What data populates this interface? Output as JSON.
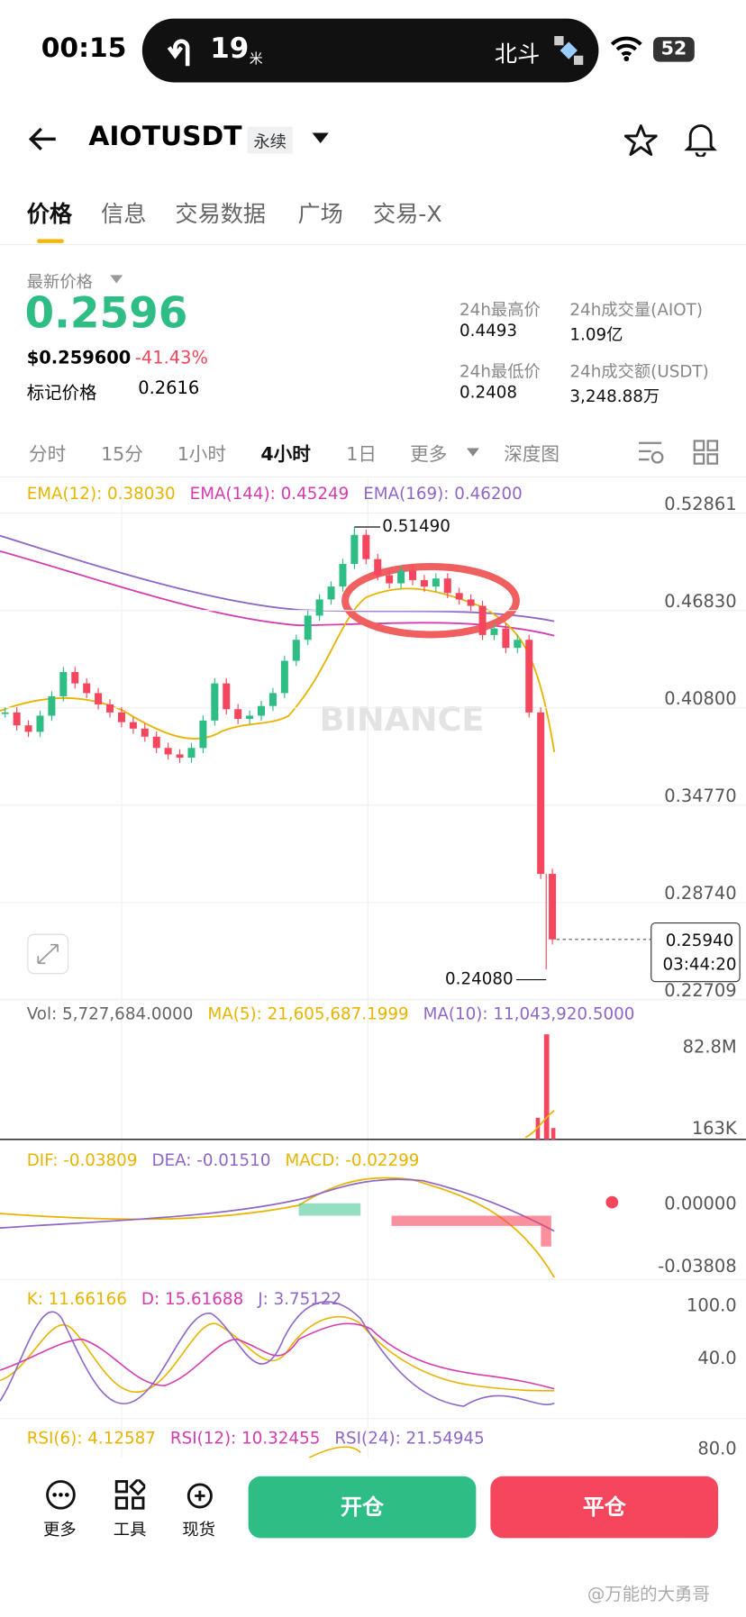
{
  "status": {
    "time": "00:15",
    "distance": "19",
    "unit": "米",
    "satellite": "北斗",
    "battery": "52"
  },
  "header": {
    "symbol": "AIOTUSDT",
    "tag": "永续"
  },
  "tabs": [
    "价格",
    "信息",
    "交易数据",
    "广场",
    "交易-X"
  ],
  "price": {
    "label": "最新价格",
    "last": "0.2596",
    "usd": "$0.259600",
    "change": "-41.43%",
    "mark_label": "标记价格",
    "mark": "0.2616"
  },
  "stats": [
    {
      "label": "24h最高价",
      "value": "0.4493"
    },
    {
      "label": "24h成交量(AIOT)",
      "value": "1.09亿"
    },
    {
      "label": "24h最低价",
      "value": "0.2408"
    },
    {
      "label": "24h成交额(USDT)",
      "value": "3,248.88万"
    }
  ],
  "intervals": [
    "分时",
    "15分",
    "1小时",
    "4小时",
    "1日",
    "更多",
    "深度图"
  ],
  "kline": {
    "legend": [
      "EMA(12): 0.38030",
      "EMA(144): 0.45249",
      "EMA(169): 0.46200"
    ],
    "watermark": "BINANCE",
    "ylim": [
      0.2223,
      0.5446
    ],
    "yticks": [
      0.52861,
      {
        "value": 0.4683,
        "label": "0.46830"
      },
      {
        "value": 0.408,
        "label": "0.40800"
      },
      {
        "value": 0.3477,
        "label": "0.34770"
      },
      {
        "value": 0.2874,
        "label": "0.28740"
      },
      0.22709
    ],
    "closes": [
      0.4,
      0.392,
      0.388,
      0.398,
      0.41,
      0.425,
      0.418,
      0.412,
      0.405,
      0.4,
      0.394,
      0.39,
      0.385,
      0.378,
      0.374,
      0.372,
      0.378,
      0.395,
      0.418,
      0.402,
      0.396,
      0.398,
      0.404,
      0.412,
      0.432,
      0.445,
      0.46,
      0.47,
      0.478,
      0.492,
      0.51,
      0.495,
      0.485,
      0.48,
      0.488,
      0.482,
      0.478,
      0.483,
      0.474,
      0.47,
      0.466,
      0.448,
      0.452,
      0.44,
      0.445,
      0.4,
      0.3,
      0.2594
    ],
    "high": {
      "value": 0.5149,
      "label": "0.51490"
    },
    "low": {
      "value": 0.2408,
      "label": "0.24080"
    },
    "last": {
      "value": 0.2594,
      "label": "0.25940"
    },
    "countdown": "03:44:20"
  },
  "volume": {
    "legend": [
      "Vol: 5,727,684.0000",
      "MA(5): 21,605,687.1999",
      "MA(10): 11,043,920.5000"
    ],
    "ticks": [
      "82.8M",
      "163K"
    ]
  },
  "macd": {
    "legend": [
      "DIF: -0.03809",
      "DEA: -0.01510",
      "MACD: -0.02299"
    ],
    "ticks": [
      "0.00000",
      "-0.03808"
    ]
  },
  "kdj": {
    "legend": [
      "K: 11.66166",
      "D: 15.61688",
      "J: 3.75122"
    ],
    "ticks": [
      "100.0",
      "40.0"
    ]
  },
  "rsi": {
    "legend": [
      "RSI(6): 4.12587",
      "RSI(12): 10.32455",
      "RSI(24): 21.54945"
    ],
    "ticks": [
      "80.0"
    ]
  },
  "bottom": {
    "tools": [
      "更多",
      "工具",
      "现货"
    ],
    "open": "开仓",
    "close": "平仓"
  },
  "credit": "@万能的大勇哥"
}
